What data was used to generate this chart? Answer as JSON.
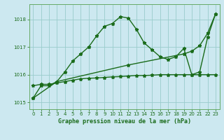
{
  "title": "Graphe pression niveau de la mer (hPa)",
  "background_color": "#cce8f0",
  "grid_color": "#99cccc",
  "line_color": "#1a6b1a",
  "spine_color": "#66aa66",
  "xlim": [
    -0.5,
    23.5
  ],
  "ylim": [
    1014.75,
    1018.55
  ],
  "yticks": [
    1015,
    1016,
    1017,
    1018
  ],
  "xticks": [
    0,
    1,
    2,
    3,
    4,
    5,
    6,
    7,
    8,
    9,
    10,
    11,
    12,
    13,
    14,
    15,
    16,
    17,
    18,
    19,
    20,
    21,
    22,
    23
  ],
  "s1_x": [
    0,
    1,
    2,
    3,
    4,
    5,
    6,
    7,
    8,
    9,
    10,
    11,
    12,
    13,
    14,
    15,
    16,
    17,
    18,
    19,
    20,
    21,
    22,
    23
  ],
  "s1_y": [
    1015.15,
    1015.6,
    1015.6,
    1015.75,
    1016.1,
    1016.5,
    1016.75,
    1017.0,
    1017.4,
    1017.75,
    1017.85,
    1018.1,
    1018.05,
    1017.65,
    1017.15,
    1016.9,
    1016.65,
    1016.55,
    1016.65,
    1016.95,
    1016.0,
    1016.1,
    1017.35,
    1018.2
  ],
  "s2_x": [
    0,
    1,
    2,
    3,
    4,
    5,
    6,
    7,
    8,
    9,
    10,
    11,
    12,
    13,
    14,
    15,
    16,
    17,
    18,
    19,
    20,
    21,
    22,
    23
  ],
  "s2_y": [
    1015.6,
    1015.65,
    1015.65,
    1015.7,
    1015.75,
    1015.8,
    1015.85,
    1015.87,
    1015.88,
    1015.9,
    1015.92,
    1015.93,
    1015.95,
    1015.97,
    1015.97,
    1015.98,
    1016.0,
    1016.0,
    1016.0,
    1016.0,
    1016.0,
    1016.0,
    1016.0,
    1016.0
  ],
  "s3_x": [
    0,
    3,
    12,
    19,
    20,
    21,
    22,
    23
  ],
  "s3_y": [
    1015.15,
    1015.75,
    1016.35,
    1016.75,
    1016.85,
    1017.05,
    1017.5,
    1018.2
  ],
  "linewidth": 1.0,
  "markersize": 3.5
}
